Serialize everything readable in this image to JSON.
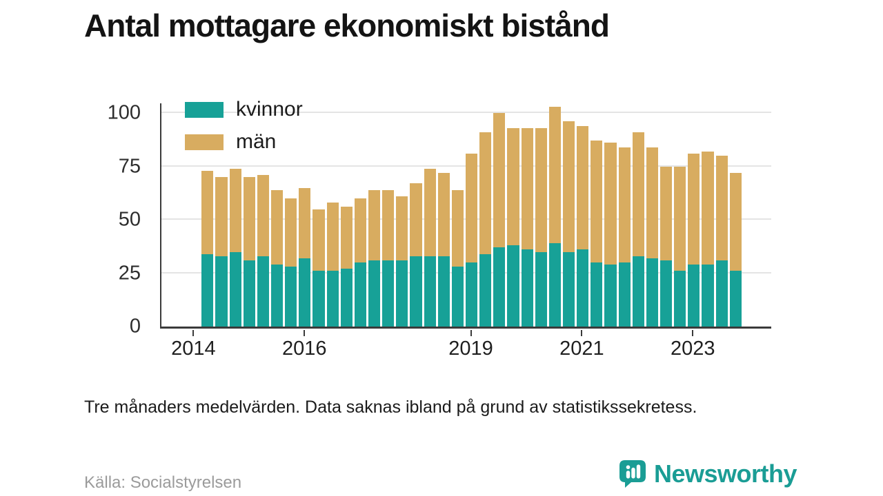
{
  "title": "Antal mottagare ekonomiskt bistånd",
  "caption": "Tre månaders medelvärden. Data saknas ibland på grund av statistikssekretess.",
  "source": "Källa: Socialstyrelsen",
  "brand": {
    "name": "Newsworthy",
    "color": "#1A9D95",
    "icon": "speech-bubble-bar-chart-icon"
  },
  "chart_data": {
    "type": "bar",
    "stacked": true,
    "title": "Antal mottagare ekonomiskt bistånd",
    "xlabel": "",
    "ylabel": "",
    "ylim": [
      0,
      100
    ],
    "yticks": [
      0,
      25,
      50,
      75,
      100
    ],
    "grid": "horizontal",
    "gridline_color": "#e4e4e4",
    "legend_position": "top-left",
    "categories": [
      "2014 Q2",
      "2014 Q3",
      "2014 Q4",
      "2015 Q1",
      "2015 Q2",
      "2015 Q3",
      "2015 Q4",
      "2016 Q1",
      "2016 Q2",
      "2016 Q3",
      "2016 Q4",
      "2017 Q1",
      "2017 Q2",
      "2017 Q3",
      "2017 Q4",
      "2018 Q1",
      "2018 Q2",
      "2018 Q3",
      "2018 Q4",
      "2019 Q1",
      "2019 Q2",
      "2019 Q3",
      "2019 Q4",
      "2020 Q1",
      "2020 Q2",
      "2020 Q3",
      "2020 Q4",
      "2021 Q1",
      "2021 Q2",
      "2021 Q3",
      "2021 Q4",
      "2022 Q1",
      "2022 Q2",
      "2022 Q3",
      "2022 Q4",
      "2023 Q1",
      "2023 Q2",
      "2023 Q3",
      "2023 Q4"
    ],
    "series": [
      {
        "name": "kvinnor",
        "color": "#17A197",
        "values": [
          34,
          33,
          35,
          31,
          33,
          29,
          28,
          32,
          26,
          26,
          27,
          30,
          31,
          31,
          31,
          33,
          33,
          33,
          28,
          30,
          34,
          37,
          38,
          36,
          35,
          39,
          35,
          36,
          30,
          29,
          30,
          33,
          32,
          31,
          26,
          29,
          29,
          31,
          26
        ]
      },
      {
        "name": "män",
        "color": "#D8AC60",
        "values": [
          39,
          37,
          39,
          39,
          38,
          35,
          32,
          33,
          29,
          32,
          29,
          30,
          33,
          33,
          30,
          34,
          41,
          39,
          36,
          51,
          57,
          63,
          55,
          57,
          58,
          64,
          61,
          58,
          57,
          57,
          54,
          58,
          52,
          44,
          49,
          52,
          53,
          49,
          46
        ]
      }
    ],
    "x_ticks": [
      {
        "label": "2014",
        "bar_index": -1
      },
      {
        "label": "2016",
        "bar_index": 7
      },
      {
        "label": "2019",
        "bar_index": 19
      },
      {
        "label": "2021",
        "bar_index": 27
      },
      {
        "label": "2023",
        "bar_index": 35
      }
    ]
  }
}
